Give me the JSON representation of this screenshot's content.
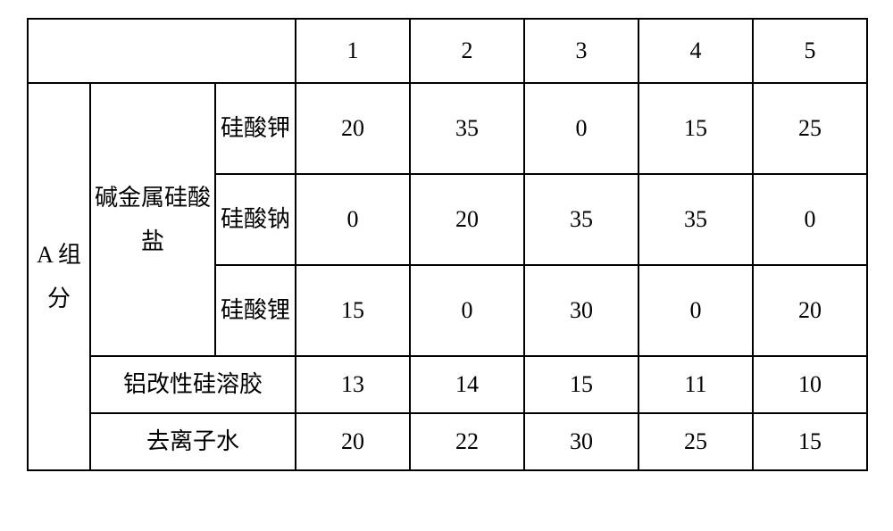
{
  "table": {
    "type": "table",
    "background_color": "#ffffff",
    "border_color": "#000000",
    "border_width": 2,
    "font_family": "SimSun",
    "font_size_pt": 20,
    "text_color": "#000000",
    "column_headers": [
      "1",
      "2",
      "3",
      "4",
      "5"
    ],
    "group_label": "A 组分",
    "section1_label": "碱金属硅酸盐",
    "rows": {
      "potassium_silicate": {
        "label": "硅酸钾",
        "values": [
          "20",
          "35",
          "0",
          "15",
          "25"
        ]
      },
      "sodium_silicate": {
        "label": "硅酸钠",
        "values": [
          "0",
          "20",
          "35",
          "35",
          "0"
        ]
      },
      "lithium_silicate": {
        "label": "硅酸锂",
        "values": [
          "15",
          "0",
          "30",
          "0",
          "20"
        ]
      },
      "al_mod_silica_sol": {
        "label": "铝改性硅溶胶",
        "values": [
          "13",
          "14",
          "15",
          "11",
          "10"
        ]
      },
      "deionized_water": {
        "label": "去离子水",
        "values": [
          "20",
          "22",
          "30",
          "25",
          "15"
        ]
      }
    }
  }
}
